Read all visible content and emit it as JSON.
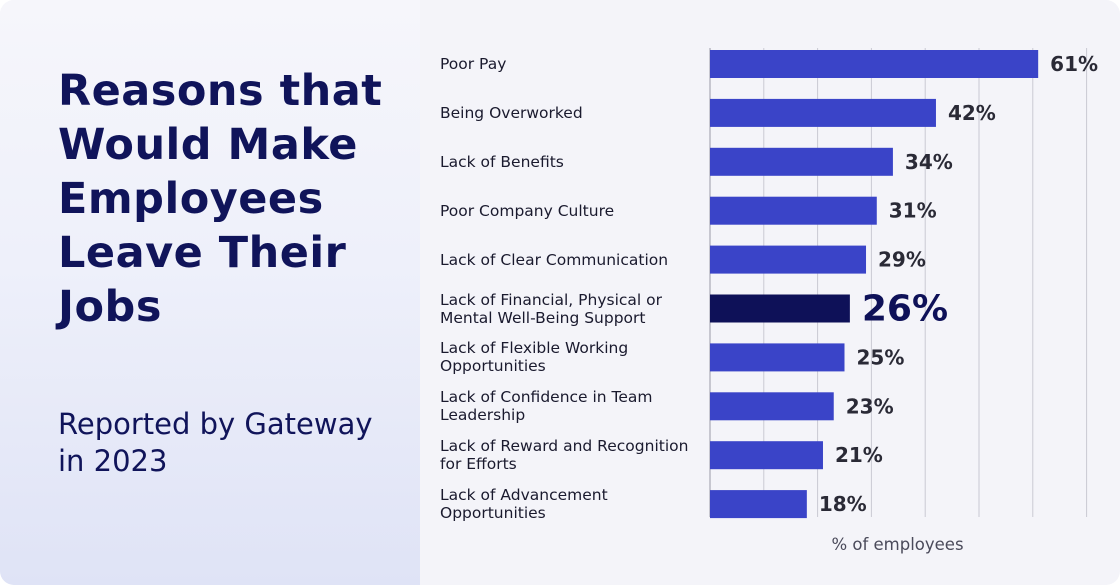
{
  "title": "Reasons that Would Make Employees Leave Their Jobs",
  "subtitle": "Reported by Gateway in 2023",
  "colors": {
    "bar": "#3a44c8",
    "highlight": "#0e1158",
    "title": "#10145a",
    "grid": "#c9c9d3"
  },
  "chart_data": {
    "type": "bar",
    "orientation": "horizontal",
    "categories": [
      "Poor Pay",
      "Being Overworked",
      "Lack of Benefits",
      "Poor Company Culture",
      "Lack of Clear Communication",
      "Lack of Financial, Physical or Mental Well-Being Support",
      "Lack of Flexible Working Opportunities",
      "Lack of Confidence in Team Leadership",
      "Lack of Reward and Recognition for Efforts",
      "Lack of Advancement Opportunities"
    ],
    "values": [
      61,
      42,
      34,
      31,
      29,
      26,
      25,
      23,
      21,
      18
    ],
    "value_labels": [
      "61%",
      "42%",
      "34%",
      "31%",
      "29%",
      "26%",
      "25%",
      "23%",
      "21%",
      "18%"
    ],
    "highlight_index": 5,
    "xlabel": "% of employees",
    "xlim": [
      0,
      70
    ],
    "grid": true
  }
}
